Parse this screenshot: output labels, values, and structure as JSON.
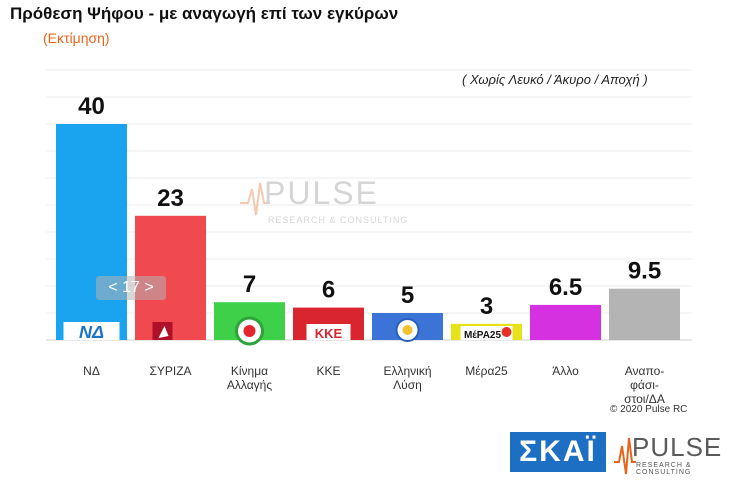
{
  "header": {
    "title": "Πρόθεση Ψήφου - με αναγωγή επί των εγκύρων",
    "subtitle": "(Εκτίμηση)",
    "note": "( Χωρίς Λευκό / Άκυρο / Αποχή )"
  },
  "footer": {
    "copyright": "© 2020 Pulse RC",
    "logo_skai": "ΣΚΑΪ",
    "logo_pulse": "PULSE",
    "logo_pulse_tag": "RESEARCH & CONSULTING"
  },
  "watermark": {
    "word": "PULSE",
    "tag": "RESEARCH & CONSULTING"
  },
  "slider": {
    "label": "< 17 >"
  },
  "chart_data": {
    "type": "bar",
    "title": "Πρόθεση Ψήφου - με αναγωγή επί των εγκύρων",
    "ylim": [
      0,
      50
    ],
    "grid": true,
    "categories": [
      {
        "label": "ΝΔ",
        "lines": [
          "ΝΔ"
        ],
        "value": 40,
        "value_label": "40",
        "color": "#1aa3ef",
        "icon": "nd-logo",
        "logo_text": "ΝΔ"
      },
      {
        "label": "ΣΥΡΙΖΑ",
        "lines": [
          "ΣΥΡΙΖΑ"
        ],
        "value": 23,
        "value_label": "23",
        "color": "#f04a50",
        "icon": "syriza-logo",
        "logo_text": ""
      },
      {
        "label": "Κίνημα Αλλαγής",
        "lines": [
          "Κίνημα",
          "Αλλαγής"
        ],
        "value": 7,
        "value_label": "7",
        "color": "#3fd04a",
        "icon": "kinal-logo",
        "logo_text": ""
      },
      {
        "label": "ΚΚΕ",
        "lines": [
          "ΚΚΕ"
        ],
        "value": 6,
        "value_label": "6",
        "color": "#d9252f",
        "icon": "kke-logo",
        "logo_text": "ΚΚΕ"
      },
      {
        "label": "Ελληνική Λύση",
        "lines": [
          "Ελληνική",
          "Λύση"
        ],
        "value": 5,
        "value_label": "5",
        "color": "#3b73d6",
        "icon": "elliniki-lysi-logo",
        "logo_text": ""
      },
      {
        "label": "Μέρα25",
        "lines": [
          "Μέρα25"
        ],
        "value": 3,
        "value_label": "3",
        "color": "#e8e21a",
        "icon": "mera25-logo",
        "logo_text": "ΜέΡΑ25"
      },
      {
        "label": "Άλλο",
        "lines": [
          "Άλλο"
        ],
        "value": 6.5,
        "value_label": "6.5",
        "color": "#d531e0",
        "icon": "",
        "logo_text": ""
      },
      {
        "label": "Αναποφάσιστοι/ΔΑ",
        "lines": [
          "Αναπο-",
          "φάσι-",
          "στοι/ΔΑ"
        ],
        "value": 9.5,
        "value_label": "9.5",
        "color": "#b4b4b4",
        "icon": "",
        "logo_text": ""
      }
    ]
  }
}
